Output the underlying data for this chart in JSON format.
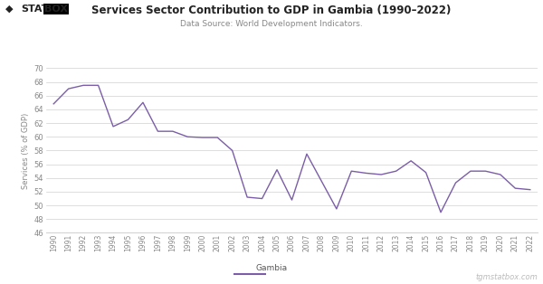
{
  "title": "Services Sector Contribution to GDP in Gambia (1990–2022)",
  "subtitle": "Data Source: World Development Indicators.",
  "ylabel": "Services (% of GDP)",
  "line_color": "#7B5EA7",
  "background_color": "#ffffff",
  "grid_color": "#d0d0d0",
  "ylim": [
    46,
    70
  ],
  "yticks": [
    46,
    48,
    50,
    52,
    54,
    56,
    58,
    60,
    62,
    64,
    66,
    68,
    70
  ],
  "legend_label": "Gambia",
  "watermark": "tgmstatbox.com",
  "years": [
    1990,
    1991,
    1992,
    1993,
    1994,
    1995,
    1996,
    1997,
    1998,
    1999,
    2000,
    2001,
    2002,
    2003,
    2004,
    2005,
    2006,
    2007,
    2008,
    2009,
    2010,
    2011,
    2012,
    2013,
    2014,
    2015,
    2016,
    2017,
    2018,
    2019,
    2020,
    2021,
    2022
  ],
  "values": [
    64.8,
    67.0,
    67.5,
    67.5,
    61.5,
    62.5,
    65.0,
    60.8,
    60.8,
    60.0,
    59.9,
    59.9,
    58.0,
    51.2,
    51.0,
    55.2,
    50.8,
    57.5,
    53.5,
    49.5,
    55.0,
    54.7,
    54.5,
    55.0,
    56.5,
    54.8,
    49.0,
    53.3,
    55.0,
    55.0,
    54.5,
    52.5,
    52.3
  ],
  "logo_diamond_color": "#222222",
  "logo_stat_color": "#222222",
  "logo_box_color": "#222222",
  "title_color": "#222222",
  "subtitle_color": "#888888",
  "tick_color": "#888888",
  "ylabel_color": "#888888",
  "watermark_color": "#bbbbbb"
}
